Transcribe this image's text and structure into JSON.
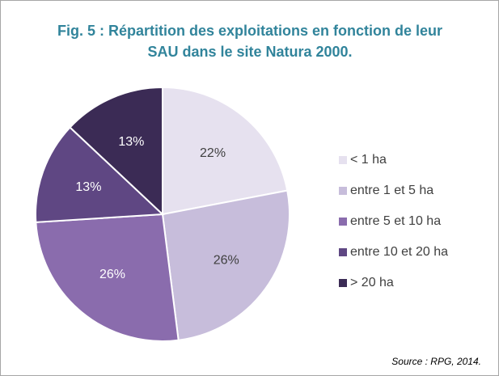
{
  "chart_data": {
    "type": "pie",
    "title": [
      "Fig. 5 : Répartition des exploitations en fonction de leur",
      "SAU dans le site Natura 2000."
    ],
    "source": "Source : RPG, 2014.",
    "categories": [
      "< 1 ha",
      "entre 1 et 5 ha",
      "entre 5 et 10 ha",
      "entre 10 et 20 ha",
      "> 20 ha"
    ],
    "values": [
      22,
      26,
      26,
      13,
      13
    ],
    "value_labels": [
      "22%",
      "26%",
      "26%",
      "13%",
      "13%"
    ],
    "colors": [
      "#e6e1ef",
      "#c7bddb",
      "#8a6cad",
      "#5f4783",
      "#3b2b55"
    ],
    "legend": "right"
  }
}
